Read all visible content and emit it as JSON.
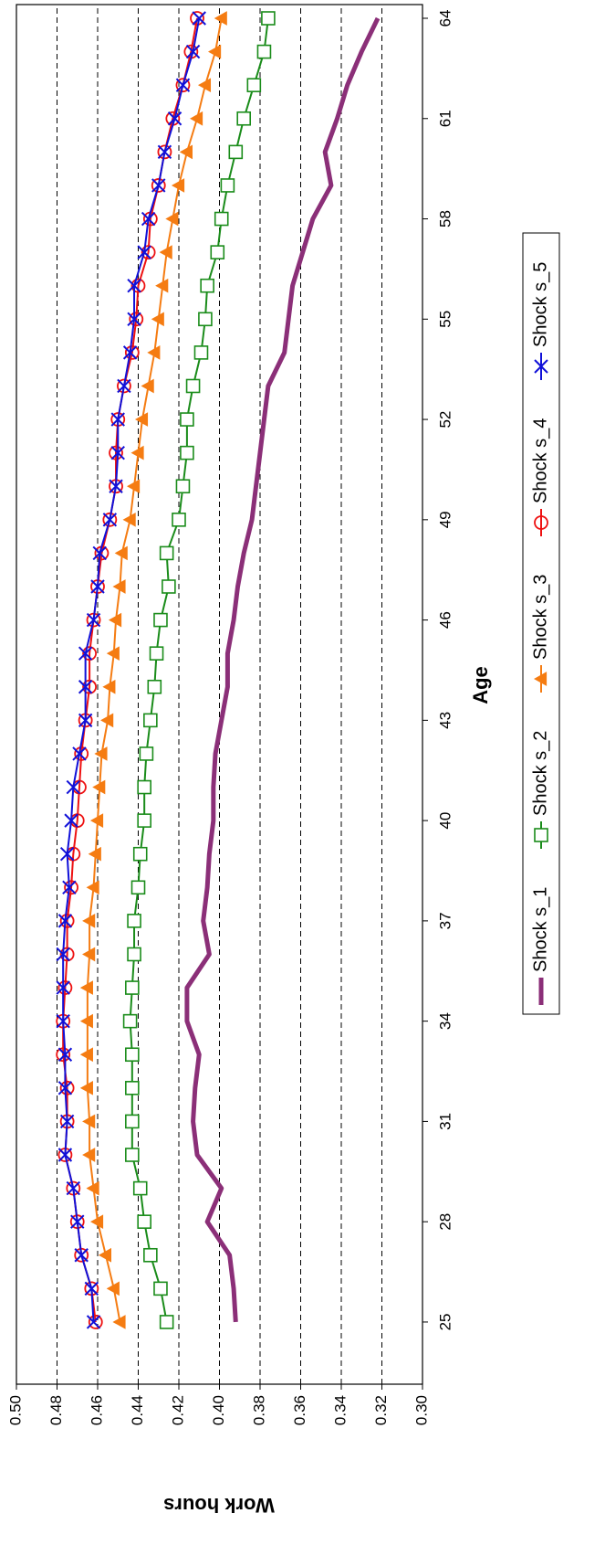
{
  "chart_data": {
    "type": "line",
    "x_label": "Age",
    "y_label": "Work hours",
    "x": [
      25,
      26,
      27,
      28,
      29,
      30,
      31,
      32,
      33,
      34,
      35,
      36,
      37,
      38,
      39,
      40,
      41,
      42,
      43,
      44,
      45,
      46,
      47,
      48,
      49,
      50,
      51,
      52,
      53,
      54,
      55,
      56,
      57,
      58,
      59,
      60,
      61,
      62,
      63,
      64
    ],
    "xlim": [
      23.14,
      64.41
    ],
    "xticks": [
      25,
      28,
      31,
      34,
      37,
      40,
      43,
      46,
      49,
      52,
      55,
      58,
      61,
      64
    ],
    "ylim": [
      0.3,
      0.5
    ],
    "yticks": [
      {
        "value": 0.3,
        "label": "0.30"
      },
      {
        "value": 0.32,
        "label": "0.32"
      },
      {
        "value": 0.34,
        "label": "0.34"
      },
      {
        "value": 0.36,
        "label": "0.36"
      },
      {
        "value": 0.38,
        "label": "0.38"
      },
      {
        "value": 0.4,
        "label": "0.40"
      },
      {
        "value": 0.42,
        "label": "0.42"
      },
      {
        "value": 0.44,
        "label": "0.44"
      },
      {
        "value": 0.46,
        "label": "0.46"
      },
      {
        "value": 0.48,
        "label": "0.48"
      },
      {
        "value": 0.5,
        "label": "0.50"
      }
    ],
    "grid": true,
    "legend": "bottom",
    "series": [
      {
        "name": "Shock s_1",
        "color": "#8b2f78",
        "marker": "none",
        "values": [
          0.392,
          0.393,
          0.395,
          0.406,
          0.399,
          0.411,
          0.413,
          0.412,
          0.41,
          0.416,
          0.416,
          0.405,
          0.408,
          0.406,
          0.405,
          0.403,
          0.403,
          0.402,
          0.399,
          0.396,
          0.396,
          0.393,
          0.391,
          0.388,
          0.384,
          0.382,
          0.38,
          0.378,
          0.376,
          0.368,
          0.366,
          0.364,
          0.359,
          0.354,
          0.345,
          0.348,
          0.342,
          0.337,
          0.33,
          0.322
        ]
      },
      {
        "name": "Shock s_2",
        "color": "#1a8c1a",
        "marker": "square",
        "values": [
          0.426,
          0.429,
          0.434,
          0.437,
          0.439,
          0.443,
          0.443,
          0.443,
          0.443,
          0.444,
          0.443,
          0.442,
          0.442,
          0.44,
          0.439,
          0.437,
          0.437,
          0.436,
          0.434,
          0.432,
          0.431,
          0.429,
          0.425,
          0.426,
          0.42,
          0.418,
          0.416,
          0.416,
          0.413,
          0.409,
          0.407,
          0.406,
          0.401,
          0.399,
          0.396,
          0.392,
          0.388,
          0.383,
          0.378,
          0.376
        ]
      },
      {
        "name": "Shock s_3",
        "color": "#f57c12",
        "marker": "triangle",
        "values": [
          0.449,
          0.452,
          0.456,
          0.46,
          0.462,
          0.464,
          0.464,
          0.465,
          0.465,
          0.465,
          0.465,
          0.464,
          0.464,
          0.462,
          0.461,
          0.46,
          0.459,
          0.458,
          0.455,
          0.454,
          0.452,
          0.451,
          0.449,
          0.448,
          0.444,
          0.442,
          0.44,
          0.438,
          0.435,
          0.432,
          0.43,
          0.428,
          0.426,
          0.423,
          0.42,
          0.416,
          0.411,
          0.407,
          0.402,
          0.399
        ]
      },
      {
        "name": "Shock s_4",
        "color": "#ee1111",
        "marker": "circle",
        "values": [
          0.461,
          0.463,
          0.468,
          0.47,
          0.472,
          0.476,
          0.475,
          0.475,
          0.477,
          0.477,
          0.476,
          0.475,
          0.475,
          0.473,
          0.472,
          0.47,
          0.469,
          0.468,
          0.466,
          0.464,
          0.464,
          0.462,
          0.46,
          0.458,
          0.454,
          0.451,
          0.451,
          0.45,
          0.447,
          0.443,
          0.441,
          0.44,
          0.435,
          0.434,
          0.43,
          0.427,
          0.423,
          0.418,
          0.414,
          0.411
        ]
      },
      {
        "name": "Shock s_5",
        "color": "#1010d8",
        "marker": "x",
        "values": [
          0.462,
          0.463,
          0.468,
          0.47,
          0.472,
          0.476,
          0.475,
          0.476,
          0.476,
          0.477,
          0.477,
          0.477,
          0.476,
          0.474,
          0.475,
          0.473,
          0.472,
          0.469,
          0.466,
          0.466,
          0.466,
          0.462,
          0.46,
          0.459,
          0.454,
          0.451,
          0.45,
          0.45,
          0.447,
          0.444,
          0.442,
          0.442,
          0.437,
          0.435,
          0.43,
          0.427,
          0.422,
          0.418,
          0.413,
          0.41
        ]
      }
    ]
  }
}
